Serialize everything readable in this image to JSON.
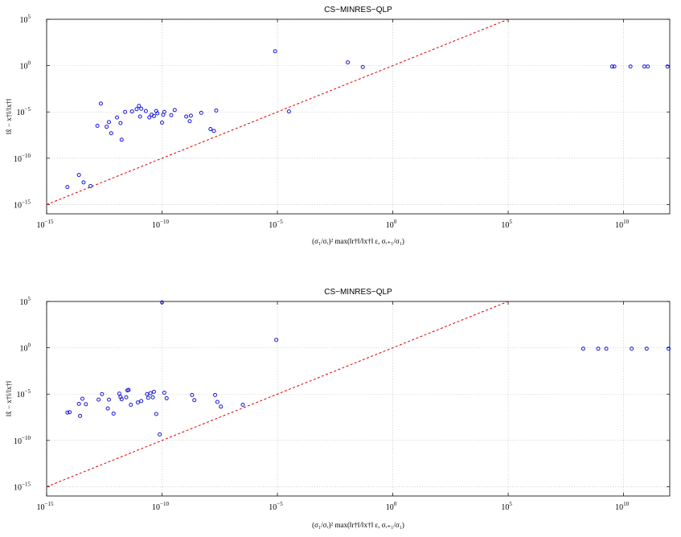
{
  "chart_data": [
    {
      "type": "scatter",
      "title": "CS−MINRES−QLP",
      "xlabel": "(σ₁/σᵣ)² max(‖r†‖/‖x†‖ ε, σᵣ₊₁/σ₁)",
      "ylabel": "‖x̂ − x†‖/‖x†‖",
      "xscale": "log",
      "yscale": "log",
      "xlim_exp": [
        -15,
        12
      ],
      "ylim_exp": [
        -16,
        5
      ],
      "xticks": [
        {
          "base": "10",
          "exp": "−15"
        },
        {
          "base": "10",
          "exp": "−10"
        },
        {
          "base": "10",
          "exp": "−5"
        },
        {
          "base": "10",
          "exp": "0"
        },
        {
          "base": "10",
          "exp": "5"
        },
        {
          "base": "10",
          "exp": "10"
        }
      ],
      "yticks": [
        {
          "base": "10",
          "exp": "−15"
        },
        {
          "base": "10",
          "exp": "−10"
        },
        {
          "base": "10",
          "exp": "−5"
        },
        {
          "base": "10",
          "exp": "0"
        },
        {
          "base": "10",
          "exp": "5"
        }
      ],
      "grid": true,
      "reference_line": {
        "color": "#e00000",
        "style": "dashed",
        "x_exp": [
          -15,
          5
        ],
        "y_exp": [
          -15,
          5
        ]
      },
      "marker_color": "#1616d8",
      "points_log10": [
        [
          -14.1,
          -13.1
        ],
        [
          -13.6,
          -11.8
        ],
        [
          -13.4,
          -12.6
        ],
        [
          -13.1,
          -13.0
        ],
        [
          -12.8,
          -6.5
        ],
        [
          -12.65,
          -4.1
        ],
        [
          -12.4,
          -6.6
        ],
        [
          -12.3,
          -6.1
        ],
        [
          -12.2,
          -7.3
        ],
        [
          -11.95,
          -5.6
        ],
        [
          -11.8,
          -6.2
        ],
        [
          -11.75,
          -8.0
        ],
        [
          -11.6,
          -5.0
        ],
        [
          -11.3,
          -4.95
        ],
        [
          -11.1,
          -4.7
        ],
        [
          -11.0,
          -4.35
        ],
        [
          -10.9,
          -4.65
        ],
        [
          -10.95,
          -5.5
        ],
        [
          -10.7,
          -4.9
        ],
        [
          -10.55,
          -5.6
        ],
        [
          -10.45,
          -5.3
        ],
        [
          -10.35,
          -5.45
        ],
        [
          -10.25,
          -4.9
        ],
        [
          -10.2,
          -5.15
        ],
        [
          -10.0,
          -6.15
        ],
        [
          -9.95,
          -5.3
        ],
        [
          -9.9,
          -5.0
        ],
        [
          -9.6,
          -5.35
        ],
        [
          -9.45,
          -4.8
        ],
        [
          -8.95,
          -5.5
        ],
        [
          -8.8,
          -6.0
        ],
        [
          -8.75,
          -5.4
        ],
        [
          -8.3,
          -5.1
        ],
        [
          -7.9,
          -6.85
        ],
        [
          -7.75,
          -7.05
        ],
        [
          -7.65,
          -4.85
        ],
        [
          -5.1,
          1.55
        ],
        [
          -4.5,
          -4.95
        ],
        [
          -1.95,
          0.35
        ],
        [
          -1.3,
          -0.15
        ],
        [
          9.5,
          -0.1
        ],
        [
          9.6,
          -0.1
        ],
        [
          10.3,
          -0.1
        ],
        [
          10.9,
          -0.1
        ],
        [
          11.05,
          -0.1
        ],
        [
          11.9,
          -0.1
        ]
      ]
    },
    {
      "type": "scatter",
      "title": "CS−MINRES−QLP",
      "xlabel": "(σ₁/σᵣ)² max(‖r†‖/‖x†‖ ε, σᵣ₊₁/σ₁)",
      "ylabel": "‖x̂ − x†‖/‖x†‖",
      "xscale": "log",
      "yscale": "log",
      "xlim_exp": [
        -15,
        12
      ],
      "ylim_exp": [
        -16,
        5
      ],
      "xticks": [
        {
          "base": "10",
          "exp": "−15"
        },
        {
          "base": "10",
          "exp": "−10"
        },
        {
          "base": "10",
          "exp": "−5"
        },
        {
          "base": "10",
          "exp": "0"
        },
        {
          "base": "10",
          "exp": "5"
        },
        {
          "base": "10",
          "exp": "10"
        }
      ],
      "yticks": [
        {
          "base": "10",
          "exp": "−15"
        },
        {
          "base": "10",
          "exp": "−10"
        },
        {
          "base": "10",
          "exp": "−5"
        },
        {
          "base": "10",
          "exp": "0"
        },
        {
          "base": "10",
          "exp": "5"
        }
      ],
      "grid": true,
      "reference_line": {
        "color": "#e00000",
        "style": "dashed",
        "x_exp": [
          -15,
          5
        ],
        "y_exp": [
          -15,
          5
        ]
      },
      "marker_color": "#1616d8",
      "points_log10": [
        [
          -14.1,
          -7.0
        ],
        [
          -14.0,
          -6.95
        ],
        [
          -13.6,
          -6.05
        ],
        [
          -13.55,
          -7.35
        ],
        [
          -13.45,
          -5.5
        ],
        [
          -13.3,
          -6.1
        ],
        [
          -12.75,
          -5.6
        ],
        [
          -12.6,
          -5.0
        ],
        [
          -12.35,
          -6.55
        ],
        [
          -12.3,
          -5.6
        ],
        [
          -12.1,
          -7.1
        ],
        [
          -11.85,
          -4.95
        ],
        [
          -11.8,
          -5.3
        ],
        [
          -11.75,
          -5.55
        ],
        [
          -11.55,
          -5.35
        ],
        [
          -11.5,
          -4.6
        ],
        [
          -11.45,
          -4.55
        ],
        [
          -11.35,
          -6.15
        ],
        [
          -11.05,
          -5.9
        ],
        [
          -10.9,
          -5.75
        ],
        [
          -10.65,
          -5.0
        ],
        [
          -10.6,
          -5.4
        ],
        [
          -10.5,
          -4.9
        ],
        [
          -10.4,
          -5.35
        ],
        [
          -10.35,
          -4.75
        ],
        [
          -10.25,
          -7.15
        ],
        [
          -10.1,
          -9.35
        ],
        [
          -10.0,
          4.9
        ],
        [
          -9.9,
          -4.85
        ],
        [
          -9.8,
          -5.45
        ],
        [
          -8.7,
          -5.1
        ],
        [
          -8.6,
          -5.65
        ],
        [
          -7.7,
          -5.1
        ],
        [
          -7.6,
          -5.85
        ],
        [
          -7.45,
          -6.35
        ],
        [
          -6.5,
          -6.15
        ],
        [
          -5.05,
          0.85
        ],
        [
          8.25,
          -0.1
        ],
        [
          8.9,
          -0.1
        ],
        [
          9.25,
          -0.1
        ],
        [
          10.35,
          -0.1
        ],
        [
          11.0,
          -0.1
        ],
        [
          11.95,
          -0.1
        ]
      ]
    }
  ]
}
